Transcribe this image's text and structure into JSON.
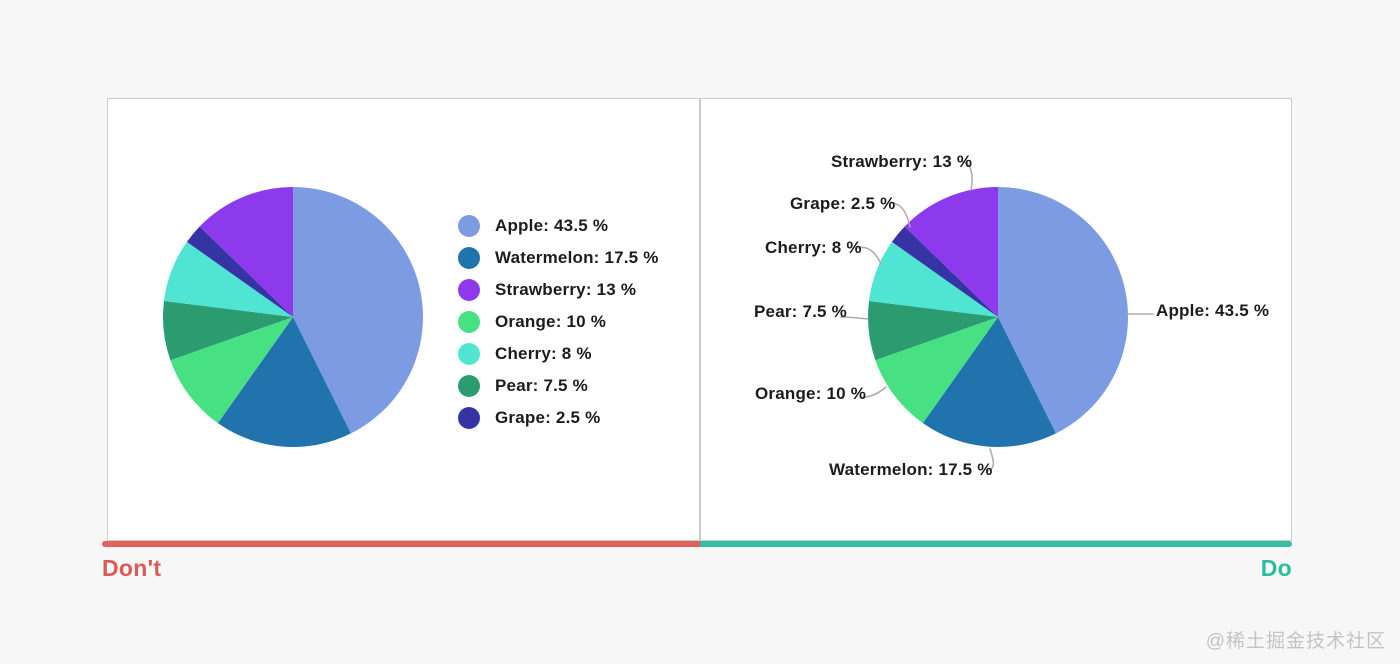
{
  "page": {
    "dont_label": "Don't",
    "do_label": "Do",
    "watermark": "@稀土掘金技术社区",
    "colors": {
      "dont_accent": "#d95b55",
      "do_accent": "#29bd9e"
    }
  },
  "chart_data": [
    {
      "type": "pie",
      "panel": "Don't",
      "labeling": "legend",
      "legend_position": "right",
      "title": "",
      "unit": "%",
      "categories": [
        "Apple",
        "Watermelon",
        "Strawberry",
        "Orange",
        "Cherry",
        "Pear",
        "Grape"
      ],
      "values": [
        43.5,
        17.5,
        13,
        10,
        8,
        7.5,
        2.5
      ],
      "clockwise_order_from_top": [
        "Apple",
        "Watermelon",
        "Orange",
        "Pear",
        "Cherry",
        "Grape",
        "Strawberry"
      ],
      "items": [
        {
          "name": "Apple",
          "value": 43.5,
          "display": "Apple: 43.5 %",
          "color": "#7d9be2"
        },
        {
          "name": "Watermelon",
          "value": 17.5,
          "display": "Watermelon: 17.5 %",
          "color": "#2173ad"
        },
        {
          "name": "Strawberry",
          "value": 13,
          "display": "Strawberry: 13 %",
          "color": "#8c3aec"
        },
        {
          "name": "Orange",
          "value": 10,
          "display": "Orange: 10 %",
          "color": "#47e082"
        },
        {
          "name": "Cherry",
          "value": 8,
          "display": "Cherry: 8 %",
          "color": "#4fe5d2"
        },
        {
          "name": "Pear",
          "value": 7.5,
          "display": "Pear: 7.5 %",
          "color": "#2a9c70"
        },
        {
          "name": "Grape",
          "value": 2.5,
          "display": "Grape: 2.5 %",
          "color": "#3634a5"
        }
      ]
    },
    {
      "type": "pie",
      "panel": "Do",
      "labeling": "direct-labels-with-leader-lines",
      "title": "",
      "unit": "%",
      "categories": [
        "Apple",
        "Watermelon",
        "Strawberry",
        "Orange",
        "Cherry",
        "Pear",
        "Grape"
      ],
      "values": [
        43.5,
        17.5,
        13,
        10,
        8,
        7.5,
        2.5
      ],
      "clockwise_order_from_top": [
        "Apple",
        "Watermelon",
        "Orange",
        "Pear",
        "Cherry",
        "Grape",
        "Strawberry"
      ],
      "items": [
        {
          "name": "Apple",
          "value": 43.5,
          "display": "Apple: 43.5 %",
          "color": "#7d9be2"
        },
        {
          "name": "Watermelon",
          "value": 17.5,
          "display": "Watermelon: 17.5 %",
          "color": "#2173ad"
        },
        {
          "name": "Strawberry",
          "value": 13,
          "display": "Strawberry: 13 %",
          "color": "#8c3aec"
        },
        {
          "name": "Orange",
          "value": 10,
          "display": "Orange: 10 %",
          "color": "#47e082"
        },
        {
          "name": "Cherry",
          "value": 8,
          "display": "Cherry: 8 %",
          "color": "#4fe5d2"
        },
        {
          "name": "Pear",
          "value": 7.5,
          "display": "Pear: 7.5 %",
          "color": "#2a9c70"
        },
        {
          "name": "Grape",
          "value": 2.5,
          "display": "Grape: 2.5 %",
          "color": "#3634a5"
        }
      ]
    }
  ]
}
